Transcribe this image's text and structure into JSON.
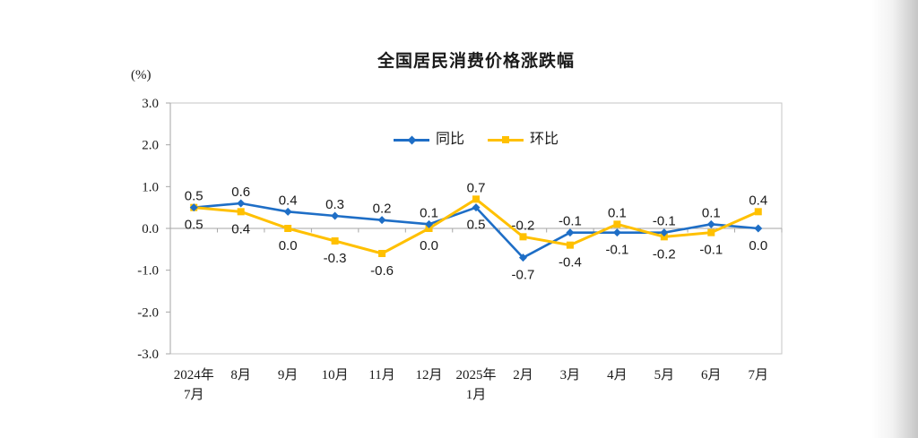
{
  "page": {
    "background": "#ffffff"
  },
  "chart_data": {
    "type": "line",
    "title": "全国居民消费价格涨跌幅",
    "ylabel": "(%)",
    "ylim": [
      -3.0,
      3.0
    ],
    "ytick_step": 1.0,
    "yticks": [
      "3.0",
      "2.0",
      "1.0",
      "0.0",
      "-1.0",
      "-2.0",
      "-3.0"
    ],
    "categories": [
      [
        "2024年",
        "7月"
      ],
      [
        "8月"
      ],
      [
        "9月"
      ],
      [
        "10月"
      ],
      [
        "11月"
      ],
      [
        "12月"
      ],
      [
        "2025年",
        "1月"
      ],
      [
        "2月"
      ],
      [
        "3月"
      ],
      [
        "4月"
      ],
      [
        "5月"
      ],
      [
        "6月"
      ],
      [
        "7月"
      ]
    ],
    "series": [
      {
        "name": "同比",
        "key": "yoy",
        "color": "#1E6EC6",
        "marker": "diamond",
        "values": [
          0.5,
          0.6,
          0.4,
          0.3,
          0.2,
          0.1,
          0.5,
          -0.7,
          -0.1,
          -0.1,
          -0.1,
          0.1,
          0.0
        ]
      },
      {
        "name": "环比",
        "key": "mom",
        "color": "#FFC000",
        "marker": "square",
        "values": [
          0.5,
          0.4,
          0.0,
          -0.3,
          -0.6,
          0.0,
          0.7,
          -0.2,
          -0.4,
          0.1,
          -0.2,
          -0.1,
          0.4
        ]
      }
    ],
    "data_labels_shown": true,
    "grid": false,
    "legend_position": "top-center-inside",
    "axis_color": "#A6A6A6",
    "border_color": "#C6C6C6",
    "label_color": "#1a1a1a"
  }
}
